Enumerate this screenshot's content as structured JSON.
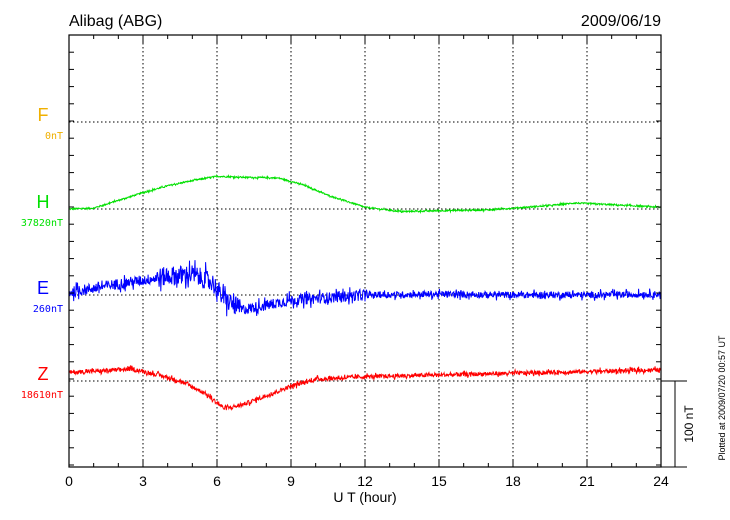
{
  "chart_data": {
    "type": "line",
    "title": "Alibag (ABG)",
    "date": "2009/06/19",
    "xlabel": "U T (hour)",
    "xlim": [
      0,
      24
    ],
    "xticks": [
      "0",
      "3",
      "6",
      "9",
      "12",
      "15",
      "18",
      "21",
      "24"
    ],
    "scale_label": "100 nT",
    "scale_nT": 100,
    "minor_tick_nT": 20,
    "footer": "Plotted at 2009/07/20 00:57 UT",
    "grid": true,
    "series": [
      {
        "name": "F",
        "baseline_label": "0nT",
        "color": "#f0b000",
        "points": []
      },
      {
        "name": "H",
        "baseline_label": "37820nT",
        "color": "#00e000",
        "noise": 1.2,
        "points": [
          [
            0,
            0
          ],
          [
            1,
            1
          ],
          [
            2,
            10
          ],
          [
            3,
            19
          ],
          [
            4,
            27
          ],
          [
            5,
            33
          ],
          [
            6,
            38
          ],
          [
            7,
            37
          ],
          [
            8.5,
            36
          ],
          [
            9.5,
            28
          ],
          [
            10.5,
            16
          ],
          [
            12,
            2
          ],
          [
            13.5,
            -3
          ],
          [
            15,
            -2
          ],
          [
            17,
            -1
          ],
          [
            18,
            1
          ],
          [
            19.5,
            4
          ],
          [
            20.5,
            7
          ],
          [
            22,
            5
          ],
          [
            24,
            2
          ]
        ]
      },
      {
        "name": "E",
        "baseline_label": "260nT",
        "color": "#0000ff",
        "noise": 9,
        "points": [
          [
            0,
            3
          ],
          [
            1,
            8
          ],
          [
            2,
            13
          ],
          [
            3,
            17
          ],
          [
            4,
            22
          ],
          [
            5,
            24
          ],
          [
            5.8,
            15
          ],
          [
            6.3,
            -5
          ],
          [
            7,
            -17
          ],
          [
            8,
            -12
          ],
          [
            9,
            -6
          ],
          [
            10.5,
            -3
          ],
          [
            12,
            0
          ],
          [
            15,
            1
          ],
          [
            18,
            0
          ],
          [
            21,
            0
          ],
          [
            24,
            1
          ]
        ]
      },
      {
        "name": "Z",
        "baseline_label": "18610nT",
        "color": "#ff0000",
        "noise": 3.5,
        "points": [
          [
            0,
            10
          ],
          [
            1.5,
            12
          ],
          [
            2.5,
            14
          ],
          [
            3.5,
            8
          ],
          [
            4.5,
            0
          ],
          [
            5.5,
            -14
          ],
          [
            6.3,
            -32
          ],
          [
            7,
            -28
          ],
          [
            8,
            -17
          ],
          [
            9,
            -6
          ],
          [
            10,
            2
          ],
          [
            12,
            5
          ],
          [
            15,
            7
          ],
          [
            18,
            9
          ],
          [
            21,
            11
          ],
          [
            24,
            13
          ]
        ]
      }
    ]
  }
}
